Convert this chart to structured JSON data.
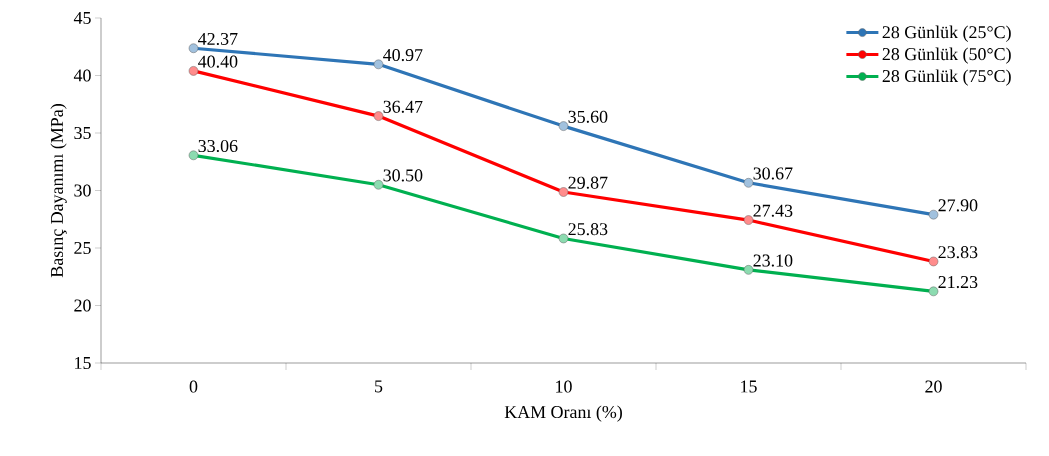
{
  "chart_data": {
    "type": "line",
    "xlabel": "KAM Oranı (%)",
    "ylabel": "Basınç Dayanımı (MPa)",
    "categories": [
      "0",
      "5",
      "10",
      "15",
      "20"
    ],
    "ylim": [
      15,
      45
    ],
    "yticks": [
      15,
      20,
      25,
      30,
      35,
      40,
      45
    ],
    "grid": false,
    "legend": "top right",
    "marker": "circle",
    "line_style": "solid",
    "series": [
      {
        "name": "28 Günlük (25°C)",
        "color": "#2e75b6",
        "values": [
          42.37,
          40.97,
          35.6,
          30.67,
          27.9
        ],
        "value_labels": [
          "42.37",
          "40.97",
          "35.60",
          "30.67",
          "27.90"
        ]
      },
      {
        "name": "28 Günlük (50°C)",
        "color": "#ff0000",
        "values": [
          40.4,
          36.47,
          29.87,
          27.43,
          23.83
        ],
        "value_labels": [
          "40.40",
          "36.47",
          "29.87",
          "27.43",
          "23.83"
        ]
      },
      {
        "name": "28 Günlük (75°C)",
        "color": "#00b050",
        "values": [
          33.06,
          30.5,
          25.83,
          23.1,
          21.23
        ],
        "value_labels": [
          "33.06",
          "30.50",
          "25.83",
          "23.10",
          "21.23"
        ]
      }
    ]
  }
}
